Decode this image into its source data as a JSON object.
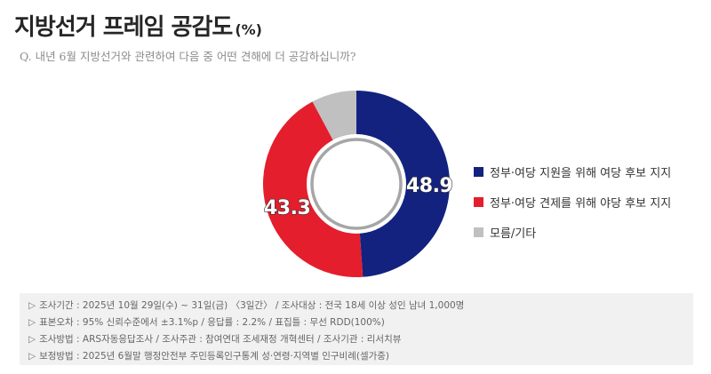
{
  "header": {
    "title": "지방선거 프레임 공감도",
    "unit": "(%)",
    "question": "Q. 내년 6월 지방선거와 관련하여 다음 중 어떤 견해에 더 공감하십니까?"
  },
  "chart_data": {
    "type": "pie",
    "variant": "donut",
    "title": "지방선거 프레임 공감도 (%)",
    "categories": [
      "정부·여당 지원을 위해 여당 후보 지지",
      "정부·여당 견제를 위해 야당 후보 지지",
      "모름/기타"
    ],
    "values": [
      48.9,
      43.3,
      7.8
    ],
    "colors": [
      "#13227f",
      "#e41e2c",
      "#c0c0c0"
    ],
    "data_labels": [
      "48.9",
      "43.3",
      ""
    ],
    "legend_position": "right",
    "start_angle": "12 o'clock, clockwise"
  },
  "legend": {
    "items": [
      {
        "label": "정부·여당 지원을 위해 여당 후보 지지",
        "color": "#13227f"
      },
      {
        "label": "정부·여당 견제를 위해 야당 후보 지지",
        "color": "#e41e2c"
      },
      {
        "label": "모름/기타",
        "color": "#c0c0c0"
      }
    ]
  },
  "notes": {
    "marker": "▷",
    "lines": [
      "조사기간 : 2025년 10월 29일(수) ~ 31일(금) 〈3일간〉 / 조사대상 : 전국 18세 이상 성인 남녀 1,000명",
      "표본오차 : 95% 신뢰수준에서 ±3.1%p / 응답률 : 2.2% / 표집틀 : 무선 RDD(100%)",
      "조사방법 : ARS자동응답조사 / 조사주관 : 참여연대 조세재정 개혁센터 / 조사기관 : 리서치뷰",
      "보정방법 : 2025년 6월말 행정안전부 주민등록인구통계 성·연령·지역별 인구비례(셀가중)"
    ]
  }
}
